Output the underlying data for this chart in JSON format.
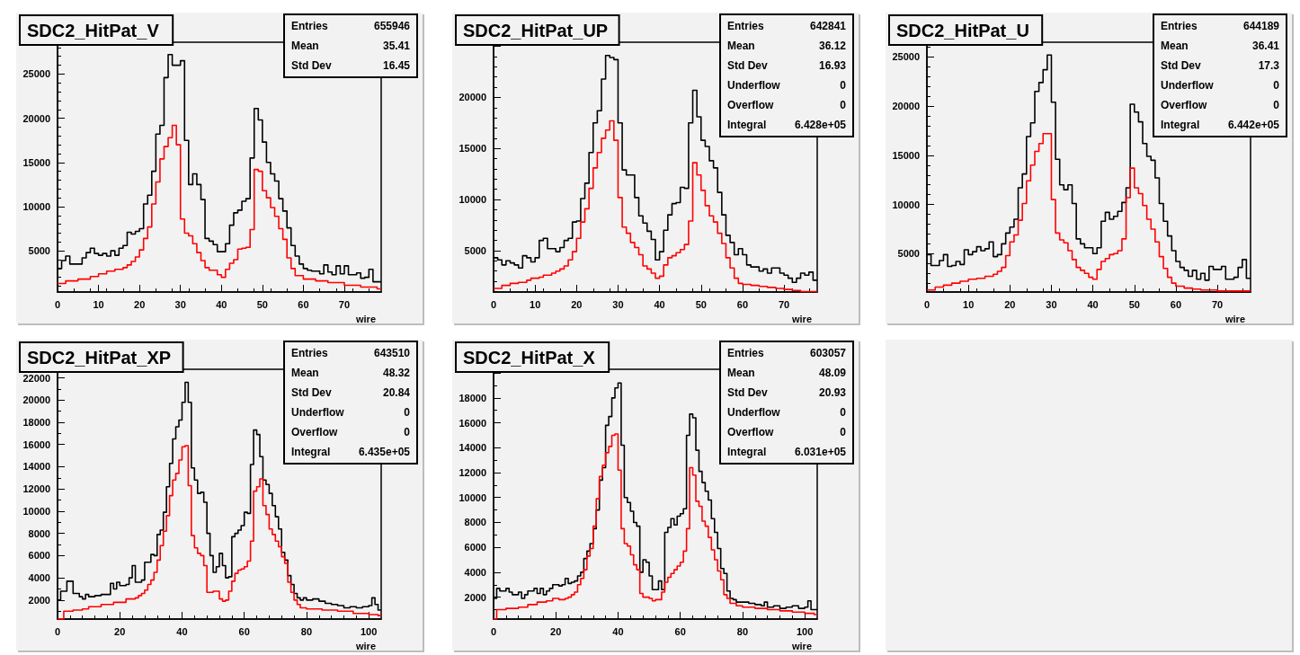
{
  "chart_data": [
    {
      "type": "step",
      "title": "SDC2_HitPat_V",
      "xlabel": "wire",
      "xlim": [
        0,
        79
      ],
      "xticks": [
        0,
        10,
        20,
        30,
        40,
        50,
        60,
        70
      ],
      "ylim": [
        340,
        28600
      ],
      "yticks": [
        5000,
        10000,
        15000,
        20000,
        25000
      ],
      "annotations": [
        "Entries 655946",
        "Mean 35.41",
        "Std Dev 16.45"
      ],
      "series": [
        {
          "color": "#000000",
          "x": [
            0,
            1,
            2,
            3,
            5,
            6,
            7,
            8,
            9,
            10,
            11,
            12,
            13,
            14,
            15,
            16,
            17,
            18,
            19,
            20,
            21,
            22,
            23,
            24,
            25,
            26,
            27,
            28,
            29,
            30,
            31,
            32,
            33,
            34,
            35,
            36,
            37,
            38,
            39,
            40,
            41,
            42,
            43,
            44,
            45,
            46,
            47,
            48,
            49,
            50,
            51,
            52,
            53,
            54,
            55,
            56,
            57,
            58,
            59,
            60,
            61,
            62,
            64,
            65,
            66,
            67,
            68,
            69,
            70,
            71,
            73,
            74,
            75,
            76,
            77,
            79
          ],
          "values": [
            3000,
            3900,
            4400,
            3500,
            3500,
            4200,
            4800,
            5300,
            4700,
            4500,
            4700,
            4400,
            5000,
            4500,
            5300,
            5600,
            7100,
            6900,
            7200,
            7500,
            10300,
            11300,
            14000,
            18200,
            19200,
            24600,
            27200,
            26000,
            26000,
            26500,
            17500,
            12500,
            13700,
            12500,
            10800,
            6400,
            6100,
            5700,
            4900,
            4900,
            5800,
            7900,
            9300,
            9600,
            10600,
            10900,
            15500,
            21100,
            19800,
            17300,
            15000,
            13700,
            12900,
            10900,
            9500,
            7600,
            5600,
            4400,
            3500,
            3000,
            2800,
            2700,
            2400,
            3400,
            2600,
            2300,
            3300,
            2400,
            3300,
            2300,
            2500,
            1900,
            2000,
            2900,
            1500,
            1500
          ]
        },
        {
          "color": "#ff0000",
          "x": [
            0,
            2,
            5,
            8,
            10,
            12,
            14,
            16,
            17,
            18,
            19,
            20,
            21,
            22,
            23,
            24,
            25,
            26,
            27,
            28,
            29,
            30,
            31,
            32,
            33,
            34,
            35,
            36,
            37,
            39,
            40,
            41,
            42,
            43,
            44,
            45,
            46,
            47,
            48,
            49,
            50,
            51,
            52,
            53,
            54,
            55,
            56,
            57,
            58,
            60,
            63,
            66,
            70,
            74,
            78,
            79
          ],
          "values": [
            1300,
            1600,
            1800,
            2100,
            2400,
            2700,
            2900,
            3100,
            3400,
            3800,
            4300,
            5100,
            6400,
            7700,
            10300,
            12800,
            15400,
            16800,
            17800,
            19200,
            17000,
            8600,
            7000,
            6700,
            5800,
            4800,
            3900,
            3100,
            2800,
            2300,
            2000,
            2900,
            3600,
            4000,
            5200,
            5300,
            5400,
            7400,
            14200,
            14000,
            11800,
            11000,
            9900,
            8900,
            7500,
            6300,
            4200,
            3000,
            2200,
            1800,
            1600,
            1400,
            1100,
            900,
            700,
            700
          ]
        }
      ]
    },
    {
      "type": "step",
      "title": "SDC2_HitPat_UP",
      "xlabel": "wire",
      "xlim": [
        0,
        78
      ],
      "xticks": [
        0,
        10,
        20,
        30,
        40,
        50,
        60,
        70
      ],
      "ylim": [
        950,
        25400
      ],
      "yticks": [
        5000,
        10000,
        15000,
        20000,
        {
          "value": 25000,
          "label": null
        }
      ],
      "annotations": [
        "Entries 642841",
        "Mean 36.12",
        "Std Dev 16.93",
        "Underflow 0",
        "Overflow 0",
        "Integral 6.428e+05"
      ],
      "series": [
        {
          "color": "#000000",
          "x": [
            0,
            1,
            2,
            3,
            4,
            5,
            6,
            7,
            8,
            9,
            10,
            11,
            12,
            13,
            15,
            16,
            17,
            18,
            19,
            20,
            21,
            22,
            23,
            24,
            25,
            26,
            27,
            28,
            29,
            30,
            31,
            32,
            34,
            35,
            36,
            37,
            38,
            39,
            40,
            41,
            42,
            43,
            44,
            45,
            46,
            47,
            48,
            49,
            50,
            51,
            52,
            53,
            54,
            55,
            56,
            57,
            58,
            59,
            60,
            61,
            62,
            64,
            65,
            66,
            67,
            69,
            70,
            71,
            72,
            73,
            74,
            75,
            76,
            77,
            78
          ],
          "values": [
            4300,
            4100,
            3600,
            4000,
            3800,
            3600,
            3300,
            4500,
            4300,
            3900,
            4300,
            6000,
            6200,
            5200,
            4900,
            5300,
            6000,
            6200,
            7800,
            7900,
            10100,
            11600,
            14600,
            17500,
            18700,
            21800,
            24100,
            23900,
            23700,
            17500,
            12900,
            12400,
            10200,
            8400,
            7700,
            6900,
            6100,
            4100,
            4900,
            7000,
            8500,
            9600,
            9700,
            11200,
            11100,
            17500,
            20700,
            18100,
            15800,
            15200,
            13800,
            13100,
            10700,
            8500,
            6500,
            5800,
            4600,
            5200,
            4600,
            3600,
            3400,
            3000,
            3200,
            2800,
            3300,
            2800,
            2600,
            2300,
            1900,
            2300,
            2800,
            2600,
            2900,
            2100,
            2100
          ]
        },
        {
          "color": "#ff0000",
          "x": [
            0,
            2,
            4,
            6,
            8,
            9,
            11,
            12,
            14,
            15,
            16,
            17,
            18,
            19,
            20,
            21,
            22,
            23,
            24,
            25,
            26,
            27,
            28,
            29,
            30,
            31,
            32,
            33,
            34,
            35,
            36,
            37,
            38,
            39,
            40,
            41,
            42,
            43,
            44,
            45,
            46,
            47,
            48,
            49,
            50,
            51,
            52,
            53,
            54,
            55,
            56,
            57,
            58,
            59,
            60,
            62,
            64,
            66,
            68,
            70,
            72,
            74,
            76,
            78
          ],
          "values": [
            1300,
            1600,
            1800,
            1900,
            2100,
            2300,
            2400,
            2600,
            2800,
            3000,
            3200,
            3500,
            4100,
            4900,
            6200,
            7800,
            9100,
            11100,
            13100,
            14600,
            16000,
            16800,
            17700,
            15800,
            10200,
            7300,
            6700,
            5800,
            5300,
            4600,
            3500,
            3200,
            2800,
            2300,
            2500,
            3600,
            4300,
            4500,
            4800,
            5100,
            5600,
            7900,
            13600,
            12400,
            10900,
            9400,
            8400,
            7800,
            6700,
            5700,
            4300,
            3300,
            2300,
            1800,
            1700,
            1600,
            1500,
            1400,
            1300,
            1200,
            1100,
            1000,
            1000,
            1000
          ]
        }
      ]
    },
    {
      "type": "step",
      "title": "SDC2_HitPat_U",
      "xlabel": "wire",
      "xlim": [
        0,
        78
      ],
      "xticks": [
        0,
        10,
        20,
        30,
        40,
        50,
        60,
        70
      ],
      "ylim": [
        1100,
        26500
      ],
      "yticks": [
        5000,
        10000,
        15000,
        20000,
        25000
      ],
      "annotations": [
        "Entries 644189",
        "Mean 36.41",
        "Std Dev 17.3",
        "Underflow 0",
        "Overflow 0",
        "Integral 6.442e+05"
      ],
      "series": [
        {
          "color": "#000000",
          "x": [
            0,
            1,
            3,
            4,
            5,
            6,
            7,
            8,
            9,
            10,
            11,
            12,
            13,
            14,
            15,
            16,
            17,
            18,
            19,
            20,
            21,
            22,
            23,
            24,
            25,
            26,
            27,
            28,
            29,
            30,
            31,
            32,
            33,
            34,
            35,
            36,
            37,
            38,
            40,
            41,
            42,
            43,
            44,
            45,
            46,
            47,
            48,
            49,
            50,
            51,
            52,
            53,
            54,
            55,
            56,
            57,
            58,
            59,
            60,
            61,
            62,
            63,
            64,
            65,
            66,
            67,
            68,
            69,
            71,
            72,
            74,
            75,
            76,
            77,
            78
          ],
          "values": [
            4900,
            3800,
            4300,
            4900,
            3700,
            3800,
            4200,
            3900,
            5400,
            4900,
            5200,
            5700,
            5300,
            5500,
            6200,
            4700,
            4900,
            6000,
            7100,
            7700,
            8500,
            11700,
            13100,
            16900,
            18300,
            21500,
            22400,
            23700,
            25200,
            20400,
            14600,
            12000,
            11500,
            12000,
            10100,
            6500,
            6000,
            5600,
            5000,
            5600,
            8300,
            9200,
            8500,
            8800,
            9300,
            10200,
            11700,
            20200,
            19400,
            18400,
            16200,
            14900,
            14500,
            12700,
            10100,
            8300,
            6800,
            5300,
            4200,
            3600,
            3300,
            2700,
            3300,
            2400,
            3000,
            2300,
            3700,
            3400,
            3700,
            2400,
            2600,
            3600,
            4400,
            2500,
            2500
          ]
        },
        {
          "color": "#ff0000",
          "x": [
            0,
            2,
            4,
            6,
            8,
            10,
            12,
            14,
            16,
            17,
            18,
            19,
            20,
            21,
            22,
            23,
            24,
            25,
            26,
            27,
            28,
            29,
            30,
            31,
            32,
            33,
            34,
            35,
            36,
            37,
            38,
            39,
            40,
            41,
            42,
            43,
            44,
            45,
            46,
            47,
            48,
            49,
            50,
            51,
            52,
            53,
            54,
            55,
            56,
            57,
            58,
            59,
            60,
            62,
            64,
            66,
            70,
            74,
            78
          ],
          "values": [
            1300,
            1600,
            1800,
            2000,
            2200,
            2400,
            2500,
            2700,
            2900,
            3200,
            3600,
            4800,
            6200,
            6900,
            8400,
            10100,
            12400,
            14000,
            15400,
            16200,
            17200,
            17200,
            10500,
            7100,
            6400,
            6100,
            5300,
            4400,
            3600,
            3300,
            3000,
            2600,
            2400,
            3400,
            4200,
            4500,
            4900,
            5000,
            5300,
            6500,
            10700,
            13700,
            11700,
            11100,
            9900,
            8500,
            7500,
            6200,
            4700,
            3500,
            2600,
            2000,
            1700,
            1500,
            1400,
            1300,
            1200,
            1200,
            1200
          ]
        }
      ]
    },
    {
      "type": "step",
      "title": "SDC2_HitPat_XP",
      "xlabel": "wire",
      "xlim": [
        0,
        104
      ],
      "xticks": [
        0,
        20,
        40,
        60,
        80,
        100
      ],
      "ylim": [
        290,
        22770
      ],
      "yticks": [
        2000,
        4000,
        6000,
        8000,
        10000,
        12000,
        14000,
        16000,
        18000,
        20000,
        22000
      ],
      "annotations": [
        "Entries 643510",
        "Mean 48.32",
        "Std Dev 20.84",
        "Underflow 0",
        "Overflow 0",
        "Integral 6.435e+05"
      ],
      "series": [
        {
          "color": "#000000",
          "x": [
            0,
            1,
            3,
            5,
            7,
            8,
            9,
            10,
            12,
            14,
            17,
            18,
            19,
            20,
            22,
            23,
            24,
            25,
            27,
            28,
            30,
            31,
            32,
            33,
            34,
            35,
            36,
            37,
            38,
            39,
            40,
            41,
            42,
            43,
            44,
            45,
            46,
            47,
            48,
            49,
            50,
            51,
            52,
            53,
            54,
            55,
            56,
            57,
            58,
            59,
            60,
            61,
            62,
            63,
            64,
            65,
            66,
            67,
            68,
            69,
            70,
            71,
            72,
            73,
            74,
            75,
            76,
            77,
            78,
            79,
            80,
            82,
            84,
            86,
            88,
            90,
            92,
            94,
            96,
            98,
            100,
            101,
            102,
            103,
            104
          ],
          "values": [
            2000,
            2800,
            3700,
            2600,
            2300,
            2100,
            2500,
            2300,
            2400,
            2500,
            3500,
            3000,
            3600,
            3300,
            3400,
            4000,
            5100,
            3600,
            3800,
            5400,
            6100,
            6000,
            7900,
            8300,
            9900,
            12200,
            14300,
            16500,
            17600,
            18200,
            19800,
            21600,
            19800,
            13900,
            12800,
            11600,
            11700,
            10800,
            8000,
            6000,
            4500,
            5000,
            6200,
            5100,
            4000,
            4100,
            7700,
            8000,
            8300,
            8700,
            9900,
            9800,
            14200,
            17300,
            16900,
            14900,
            12800,
            12400,
            11600,
            10500,
            9500,
            8400,
            6300,
            5600,
            4200,
            3400,
            2600,
            2200,
            2000,
            2200,
            2000,
            2100,
            1900,
            1700,
            1600,
            1500,
            1300,
            1400,
            1300,
            1400,
            1500,
            2200,
            1600,
            1100,
            1100
          ]
        },
        {
          "color": "#ff0000",
          "x": [
            0,
            2,
            5,
            8,
            10,
            14,
            18,
            22,
            25,
            26,
            27,
            28,
            29,
            30,
            31,
            32,
            33,
            34,
            35,
            36,
            37,
            38,
            39,
            40,
            41,
            42,
            43,
            44,
            45,
            46,
            47,
            48,
            50,
            52,
            53,
            54,
            55,
            56,
            57,
            58,
            59,
            60,
            61,
            62,
            63,
            64,
            65,
            66,
            67,
            68,
            69,
            70,
            71,
            72,
            73,
            74,
            75,
            76,
            77,
            78,
            80,
            85,
            90,
            95,
            100,
            103,
            104
          ],
          "values": [
            300,
            1000,
            1100,
            1200,
            1400,
            1600,
            1800,
            2100,
            2200,
            2400,
            2600,
            2900,
            3400,
            3800,
            4500,
            5600,
            6900,
            8200,
            9600,
            11400,
            12800,
            13400,
            14600,
            15800,
            15900,
            12300,
            7800,
            6700,
            6200,
            6000,
            5100,
            2700,
            2800,
            2100,
            1900,
            2000,
            2800,
            3700,
            4400,
            4700,
            4800,
            5000,
            5500,
            7300,
            11800,
            12200,
            12900,
            10500,
            9700,
            8400,
            7900,
            7300,
            6800,
            5900,
            5300,
            3600,
            2700,
            2000,
            1600,
            1300,
            1200,
            1100,
            1000,
            800,
            700,
            600,
            600
          ]
        }
      ]
    },
    {
      "type": "step",
      "title": "SDC2_HitPat_X",
      "xlabel": "wire",
      "xlim": [
        0,
        104
      ],
      "xticks": [
        0,
        20,
        40,
        60,
        80,
        100
      ],
      "ylim": [
        240,
        20300
      ],
      "yticks": [
        2000,
        4000,
        6000,
        8000,
        10000,
        12000,
        14000,
        16000,
        18000,
        {
          "value": 20000,
          "label": null
        }
      ],
      "annotations": [
        "Entries 603057",
        "Mean 48.09",
        "Std Dev 20.93",
        "Underflow 0",
        "Overflow 0",
        "Integral 6.031e+05"
      ],
      "series": [
        {
          "color": "#000000",
          "x": [
            0,
            1,
            2,
            4,
            5,
            6,
            8,
            9,
            10,
            11,
            13,
            14,
            15,
            16,
            17,
            18,
            19,
            21,
            22,
            23,
            24,
            25,
            26,
            27,
            28,
            29,
            30,
            31,
            32,
            33,
            34,
            35,
            36,
            37,
            38,
            39,
            40,
            41,
            42,
            43,
            44,
            45,
            46,
            47,
            48,
            49,
            50,
            51,
            53,
            54,
            55,
            56,
            57,
            58,
            59,
            60,
            61,
            62,
            63,
            64,
            65,
            66,
            67,
            68,
            69,
            70,
            71,
            72,
            73,
            74,
            75,
            76,
            77,
            78,
            80,
            82,
            84,
            86,
            87,
            88,
            90,
            92,
            94,
            96,
            98,
            100,
            101,
            102,
            104
          ],
          "values": [
            1900,
            2700,
            2500,
            2700,
            2400,
            2200,
            2400,
            1900,
            2200,
            2500,
            2700,
            2300,
            2700,
            2200,
            2500,
            2700,
            3000,
            2900,
            3000,
            3500,
            3100,
            3200,
            3300,
            3700,
            4000,
            5100,
            5700,
            6300,
            7500,
            9000,
            11400,
            12400,
            15800,
            16500,
            18000,
            18800,
            19200,
            14200,
            10000,
            9600,
            8900,
            8000,
            7700,
            4000,
            5000,
            4800,
            3700,
            2600,
            3300,
            2600,
            7200,
            7600,
            8300,
            7800,
            8500,
            8700,
            9100,
            15000,
            16700,
            16400,
            13800,
            12100,
            11200,
            10500,
            9800,
            8300,
            7200,
            5900,
            4300,
            3900,
            2500,
            1900,
            1800,
            1600,
            1600,
            1500,
            1400,
            1300,
            1600,
            1200,
            1300,
            1100,
            1200,
            1300,
            1100,
            1200,
            1700,
            1000,
            1000
          ]
        },
        {
          "color": "#ff0000",
          "x": [
            0,
            1,
            4,
            8,
            11,
            14,
            17,
            19,
            21,
            23,
            24,
            25,
            26,
            27,
            28,
            29,
            30,
            31,
            32,
            33,
            34,
            35,
            36,
            37,
            38,
            39,
            40,
            41,
            42,
            43,
            44,
            45,
            46,
            47,
            48,
            50,
            51,
            52,
            54,
            55,
            56,
            57,
            58,
            59,
            60,
            61,
            62,
            63,
            64,
            65,
            66,
            67,
            68,
            69,
            70,
            71,
            72,
            73,
            74,
            75,
            76,
            78,
            80,
            84,
            88,
            92,
            96,
            100,
            103,
            104
          ],
          "values": [
            250,
            1000,
            1100,
            1200,
            1400,
            1600,
            1700,
            1900,
            1800,
            1900,
            2000,
            2200,
            2400,
            3000,
            3500,
            4200,
            5300,
            5900,
            7700,
            9900,
            11700,
            12600,
            13600,
            14100,
            15000,
            15100,
            12200,
            7500,
            6300,
            6100,
            5400,
            4600,
            4200,
            2300,
            2000,
            1900,
            1700,
            1800,
            2400,
            3200,
            3600,
            3900,
            4200,
            4500,
            4800,
            5700,
            7500,
            12400,
            11800,
            9700,
            9300,
            8100,
            7700,
            6800,
            5800,
            5000,
            4100,
            3400,
            2200,
            1900,
            1500,
            1300,
            1200,
            1100,
            1000,
            900,
            800,
            700,
            600,
            600
          ]
        }
      ]
    }
  ]
}
